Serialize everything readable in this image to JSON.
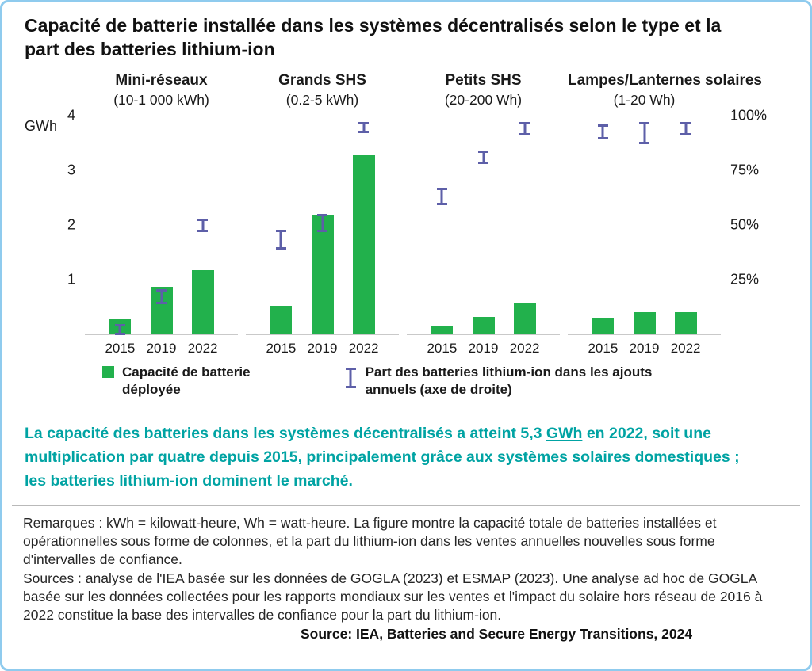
{
  "title": "Capacité de batterie installée dans les systèmes décentralisés selon le type et la part des batteries lithium-ion",
  "chart_data": {
    "type": "bar",
    "ylabel_left": "GWh",
    "ylim_left": [
      0,
      4
    ],
    "yticks_left": [
      4,
      3,
      2,
      1
    ],
    "ylim_right_percent": [
      0,
      100
    ],
    "yticks_right_percent": [
      100,
      75,
      50,
      25
    ],
    "grid": false,
    "legend_position": "bottom",
    "categories": [
      "2015",
      "2019",
      "2022"
    ],
    "panels": [
      {
        "title": "Mini-réseaux",
        "subtitle": "(10-1 000 kWh)",
        "bars_gwh": [
          0.25,
          0.85,
          1.15
        ],
        "li_ion_share_ci_percent": [
          [
            0,
            5
          ],
          [
            14,
            21
          ],
          [
            47,
            53
          ]
        ]
      },
      {
        "title": "Grands SHS",
        "subtitle": "(0.2-5 kWh)",
        "bars_gwh": [
          0.5,
          2.15,
          3.25
        ],
        "li_ion_share_ci_percent": [
          [
            39,
            48
          ],
          [
            47,
            55
          ],
          [
            92,
            97
          ]
        ]
      },
      {
        "title": "Petits SHS",
        "subtitle": "(20-200 Wh)",
        "bars_gwh": [
          0.12,
          0.3,
          0.55
        ],
        "li_ion_share_ci_percent": [
          [
            59,
            67
          ],
          [
            78,
            84
          ],
          [
            91,
            97
          ]
        ]
      },
      {
        "title": "Lampes/Lanternes solaires",
        "subtitle": "(1-20 Wh)",
        "bars_gwh": [
          0.28,
          0.38,
          0.38
        ],
        "li_ion_share_ci_percent": [
          [
            89,
            96
          ],
          [
            87,
            97
          ],
          [
            91,
            97
          ]
        ]
      }
    ],
    "legend": [
      {
        "symbol": "bar-swatch",
        "label": "Capacité de batterie\ndéployée"
      },
      {
        "symbol": "errorbar",
        "label": "Part des batteries lithium-ion dans les ajouts\nannuels (axe de droite)"
      }
    ],
    "colors": {
      "bar": "#22b14c",
      "errorbar": "#5d5fa8",
      "baseline": "#c9c9c9",
      "accent_text": "#00a3a3",
      "frame_border": "#8fcbee"
    }
  },
  "summary": {
    "pre": "La capacité des batteries dans les systèmes décentralisés a atteint 5,3 ",
    "underlined": "GWh",
    "post": " en 2022, soit une multiplication par quatre depuis 2015, principalement grâce aux systèmes solaires domestiques ; les batteries lithium-ion dominent le marché."
  },
  "notes": {
    "remarks": "Remarques : kWh = kilowatt-heure, Wh = watt-heure. La figure montre la capacité totale de batteries installées et opérationnelles sous forme de colonnes, et la part du lithium-ion dans les ventes annuelles nouvelles sous forme d'intervalles de confiance.",
    "sources": "Sources : analyse de l'IEA basée sur les données de GOGLA (2023) et ESMAP (2023). Une analyse ad hoc de GOGLA basée sur les données collectées pour les rapports mondiaux sur les ventes et l'impact du solaire hors réseau de 2016 à 2022 constitue la base des intervalles de confiance pour la part du lithium-ion.",
    "attribution": "Source: IEA, Batteries and Secure Energy Transitions, 2024"
  }
}
